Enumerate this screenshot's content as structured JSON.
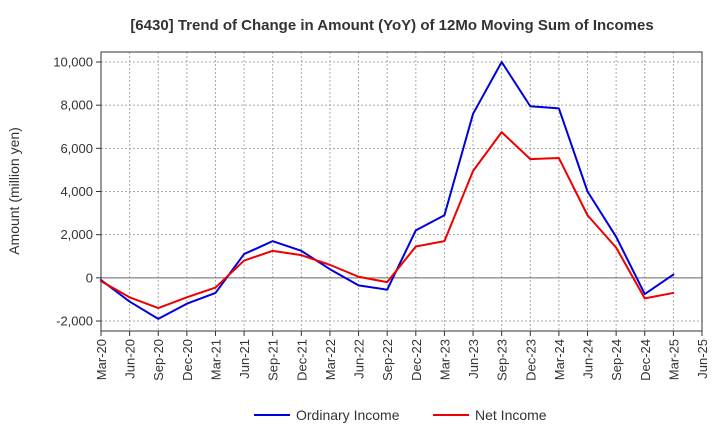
{
  "chart_data": {
    "type": "line",
    "title": "[6430]  Trend of Change in Amount (YoY) of 12Mo Moving Sum of Incomes",
    "xlabel": "",
    "ylabel": "Amount (million yen)",
    "ylim": [
      -2000,
      10000
    ],
    "yticks": [
      -2000,
      0,
      2000,
      4000,
      6000,
      8000,
      10000
    ],
    "ytick_labels": [
      "-2,000",
      "0",
      "2,000",
      "4,000",
      "6,000",
      "8,000",
      "10,000"
    ],
    "categories": [
      "Mar-20",
      "Jun-20",
      "Sep-20",
      "Dec-20",
      "Mar-21",
      "Jun-21",
      "Sep-21",
      "Dec-21",
      "Mar-22",
      "Jun-22",
      "Sep-22",
      "Dec-22",
      "Mar-23",
      "Jun-23",
      "Sep-23",
      "Dec-23",
      "Mar-24",
      "Jun-24",
      "Sep-24",
      "Dec-24",
      "Mar-25",
      "Jun-25"
    ],
    "grid": true,
    "legend_position": "bottom",
    "series": [
      {
        "name": "Ordinary Income",
        "color": "#0000dd",
        "values": [
          -100,
          -1100,
          -1900,
          -1200,
          -700,
          1100,
          1700,
          1250,
          400,
          -350,
          -550,
          2200,
          2900,
          7600,
          10000,
          7950,
          7850,
          4000,
          1900,
          -750,
          150,
          null
        ]
      },
      {
        "name": "Net Income",
        "color": "#ee0000",
        "values": [
          -150,
          -900,
          -1400,
          -900,
          -450,
          800,
          1250,
          1050,
          600,
          50,
          -200,
          1450,
          1700,
          4950,
          6750,
          5500,
          5550,
          2900,
          1400,
          -950,
          -700,
          null
        ]
      }
    ]
  }
}
